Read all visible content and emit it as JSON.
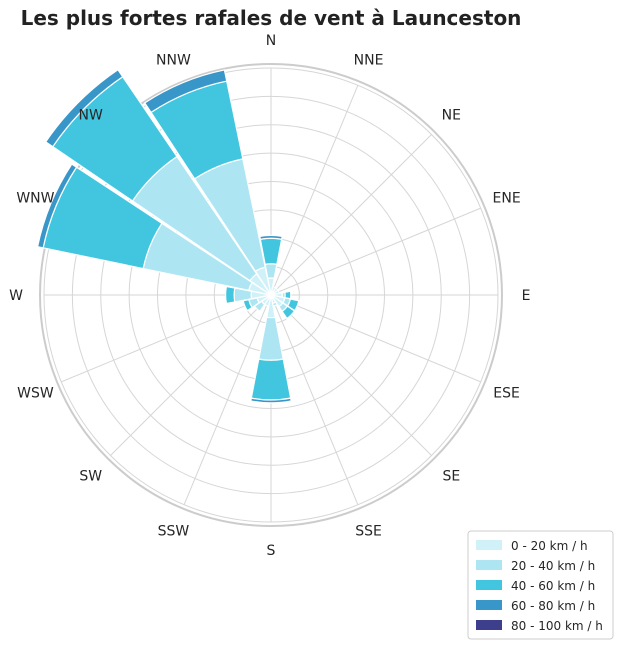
{
  "chart_data": {
    "type": "windrose",
    "title": "Les plus fortes rafales de vent à Launceston",
    "directions": [
      "N",
      "NNE",
      "NE",
      "ENE",
      "E",
      "ESE",
      "SE",
      "SSE",
      "S",
      "SSW",
      "SW",
      "WSW",
      "W",
      "WNW",
      "NW",
      "NNW"
    ],
    "series": [
      {
        "name": "0 - 20 km / h",
        "color": "#d1f1f8",
        "values": [
          0.6,
          0.3,
          0.3,
          0.3,
          0.4,
          0.5,
          0.5,
          0.3,
          0.8,
          0.4,
          0.4,
          0.5,
          0.7,
          0.8,
          0.9,
          1.0
        ]
      },
      {
        "name": "20 - 40 km / h",
        "color": "#ade6f2",
        "values": [
          0.5,
          0.0,
          0.0,
          0.0,
          0.1,
          0.2,
          0.2,
          0.1,
          1.5,
          0.0,
          0.3,
          0.3,
          0.6,
          3.8,
          5.0,
          3.9
        ]
      },
      {
        "name": "40 - 60 km / h",
        "color": "#42c6df",
        "values": [
          0.9,
          0.0,
          0.0,
          0.0,
          0.2,
          0.3,
          0.3,
          0.0,
          1.4,
          0.0,
          0.0,
          0.2,
          0.3,
          3.6,
          3.4,
          2.8
        ]
      },
      {
        "name": "60 - 80 km / h",
        "color": "#3896c8",
        "values": [
          0.1,
          0.0,
          0.0,
          0.0,
          0.0,
          0.0,
          0.0,
          0.0,
          0.1,
          0.0,
          0.0,
          0.0,
          0.0,
          0.2,
          0.3,
          0.4
        ]
      },
      {
        "name": "80 - 100 km / h",
        "color": "#3d3f8c",
        "values": [
          0.0,
          0.0,
          0.0,
          0.0,
          0.0,
          0.0,
          0.0,
          0.0,
          0.0,
          0.0,
          0.0,
          0.0,
          0.0,
          0.0,
          0.0,
          0.0
        ]
      }
    ],
    "rmax": 8.0,
    "ring_count": 8,
    "ring_labels_shown": false,
    "grid": true,
    "legend_position": "bottom-right"
  }
}
